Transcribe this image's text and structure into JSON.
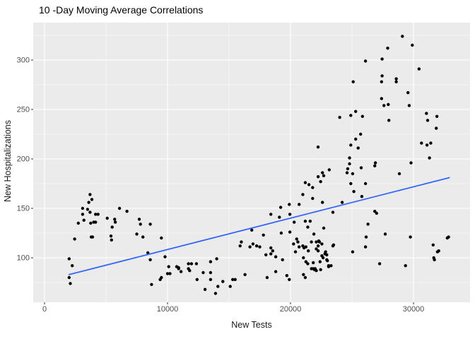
{
  "chart_data": {
    "type": "scatter",
    "title": "10 -Day Moving Average Correlations",
    "xlabel": "New Tests",
    "ylabel": "New Hospitalizations",
    "x_ticks": [
      0,
      10000,
      20000,
      30000
    ],
    "x_tick_labels": [
      "0",
      "10000",
      "20000",
      "30000"
    ],
    "y_ticks": [
      100,
      150,
      200,
      250,
      300
    ],
    "y_tick_labels": [
      "100",
      "150",
      "200",
      "250",
      "300"
    ],
    "xlim": [
      -920,
      34600
    ],
    "ylim": [
      55,
      338
    ],
    "grid": {
      "major": true,
      "minor": true,
      "style": "white gridlines on gray panel",
      "legend_position": "none"
    },
    "colors": {
      "panel_background": "#EBEBEB",
      "grid_major": "#FFFFFF",
      "grid_minor": "#FFFFFF",
      "point": "#000000",
      "trend_line": "#3366FF",
      "tick_mark": "#333333",
      "tick_text": "#4D4D4D",
      "title_text": "#000000",
      "outer_background": "#FFFFFF"
    },
    "trend_line": {
      "type": "linear-fit",
      "x": [
        2000,
        32900
      ],
      "y": [
        83,
        181
      ]
    },
    "points": [
      [
        2000,
        99
      ],
      [
        2250,
        92
      ],
      [
        2000,
        80
      ],
      [
        2100,
        74
      ],
      [
        2450,
        119
      ],
      [
        2750,
        135
      ],
      [
        3100,
        150
      ],
      [
        3100,
        144
      ],
      [
        3200,
        138
      ],
      [
        3500,
        149
      ],
      [
        3600,
        156
      ],
      [
        3700,
        164
      ],
      [
        3700,
        146
      ],
      [
        3850,
        159
      ],
      [
        3750,
        135
      ],
      [
        3800,
        121
      ],
      [
        3900,
        121
      ],
      [
        4000,
        136
      ],
      [
        4150,
        144
      ],
      [
        4150,
        136
      ],
      [
        4350,
        144
      ],
      [
        5100,
        140
      ],
      [
        5400,
        122
      ],
      [
        5450,
        118
      ],
      [
        5500,
        131
      ],
      [
        5700,
        139
      ],
      [
        5750,
        136
      ],
      [
        6100,
        150
      ],
      [
        6700,
        147
      ],
      [
        7500,
        124
      ],
      [
        7700,
        139
      ],
      [
        7800,
        134
      ],
      [
        8000,
        121
      ],
      [
        8400,
        105
      ],
      [
        8600,
        134
      ],
      [
        8600,
        98
      ],
      [
        8700,
        73
      ],
      [
        9400,
        78
      ],
      [
        9500,
        120
      ],
      [
        9500,
        80
      ],
      [
        9800,
        101
      ],
      [
        10000,
        84
      ],
      [
        10100,
        91
      ],
      [
        10200,
        84
      ],
      [
        10750,
        91
      ],
      [
        10900,
        89
      ],
      [
        10900,
        90
      ],
      [
        11100,
        86
      ],
      [
        11700,
        94
      ],
      [
        11700,
        89
      ],
      [
        11800,
        87
      ],
      [
        11950,
        94
      ],
      [
        12350,
        94
      ],
      [
        12400,
        78
      ],
      [
        12900,
        85
      ],
      [
        13050,
        68
      ],
      [
        13500,
        96
      ],
      [
        13500,
        85
      ],
      [
        13500,
        78
      ],
      [
        13900,
        64
      ],
      [
        14000,
        99
      ],
      [
        14100,
        71
      ],
      [
        14500,
        76
      ],
      [
        15100,
        71
      ],
      [
        15300,
        78
      ],
      [
        15500,
        78
      ],
      [
        15900,
        112
      ],
      [
        16000,
        116
      ],
      [
        16300,
        83
      ],
      [
        16700,
        111
      ],
      [
        16850,
        128
      ],
      [
        16950,
        114
      ],
      [
        17250,
        112
      ],
      [
        17500,
        111
      ],
      [
        17800,
        123
      ],
      [
        18000,
        103
      ],
      [
        18100,
        80
      ],
      [
        18400,
        144
      ],
      [
        18400,
        110
      ],
      [
        18400,
        104
      ],
      [
        18550,
        107
      ],
      [
        18800,
        101
      ],
      [
        18800,
        86
      ],
      [
        19100,
        141
      ],
      [
        19200,
        151
      ],
      [
        19250,
        125
      ],
      [
        19350,
        98
      ],
      [
        19700,
        82
      ],
      [
        19900,
        78
      ],
      [
        19900,
        154
      ],
      [
        19950,
        144
      ],
      [
        19950,
        126
      ],
      [
        20250,
        114
      ],
      [
        20300,
        136
      ],
      [
        20400,
        106
      ],
      [
        20500,
        119
      ],
      [
        20600,
        116
      ],
      [
        20700,
        154
      ],
      [
        20700,
        111
      ],
      [
        21000,
        164
      ],
      [
        21000,
        112
      ],
      [
        21050,
        100
      ],
      [
        21050,
        83
      ],
      [
        21100,
        110
      ],
      [
        21200,
        176
      ],
      [
        21200,
        137
      ],
      [
        21200,
        80
      ],
      [
        21250,
        111
      ],
      [
        21250,
        96
      ],
      [
        21400,
        131
      ],
      [
        21400,
        94
      ],
      [
        21450,
        107
      ],
      [
        21500,
        174
      ],
      [
        21600,
        137
      ],
      [
        21700,
        116
      ],
      [
        21700,
        89
      ],
      [
        21800,
        171
      ],
      [
        21800,
        160
      ],
      [
        21850,
        95
      ],
      [
        21850,
        89
      ],
      [
        21900,
        124
      ],
      [
        21950,
        88
      ],
      [
        22000,
        89
      ],
      [
        22100,
        116
      ],
      [
        22100,
        109
      ],
      [
        22100,
        87
      ],
      [
        22240,
        212
      ],
      [
        22250,
        182
      ],
      [
        22250,
        112
      ],
      [
        22250,
        107
      ],
      [
        22300,
        117
      ],
      [
        22350,
        116
      ],
      [
        22400,
        96
      ],
      [
        22450,
        177
      ],
      [
        22450,
        88
      ],
      [
        22550,
        114
      ],
      [
        22550,
        102
      ],
      [
        22600,
        186
      ],
      [
        22600,
        156
      ],
      [
        22650,
        100
      ],
      [
        22700,
        183
      ],
      [
        22700,
        130
      ],
      [
        22800,
        104
      ],
      [
        22850,
        106
      ],
      [
        22950,
        103
      ],
      [
        22950,
        98
      ],
      [
        23000,
        97
      ],
      [
        23100,
        92
      ],
      [
        23100,
        91
      ],
      [
        23150,
        189
      ],
      [
        23300,
        92
      ],
      [
        23450,
        146
      ],
      [
        23450,
        112
      ],
      [
        23500,
        113
      ],
      [
        24000,
        242
      ],
      [
        24200,
        156
      ],
      [
        24600,
        186
      ],
      [
        24650,
        190
      ],
      [
        24800,
        201
      ],
      [
        24800,
        195
      ],
      [
        24900,
        244
      ],
      [
        24900,
        214
      ],
      [
        24900,
        175
      ],
      [
        25050,
        185
      ],
      [
        25050,
        106
      ],
      [
        25100,
        278
      ],
      [
        25150,
        167
      ],
      [
        25300,
        248
      ],
      [
        25300,
        220
      ],
      [
        25500,
        211
      ],
      [
        25700,
        225
      ],
      [
        25750,
        191
      ],
      [
        25800,
        162
      ],
      [
        25850,
        243
      ],
      [
        26100,
        299
      ],
      [
        26100,
        175
      ],
      [
        26100,
        111
      ],
      [
        26150,
        121
      ],
      [
        26300,
        134
      ],
      [
        26850,
        193
      ],
      [
        26850,
        147
      ],
      [
        26900,
        196
      ],
      [
        27000,
        145
      ],
      [
        27250,
        94
      ],
      [
        27400,
        278
      ],
      [
        27400,
        261
      ],
      [
        27450,
        301
      ],
      [
        27450,
        284
      ],
      [
        27600,
        254
      ],
      [
        27700,
        124
      ],
      [
        27900,
        312
      ],
      [
        27950,
        255
      ],
      [
        28000,
        239
      ],
      [
        28600,
        281
      ],
      [
        28600,
        278
      ],
      [
        28850,
        185
      ],
      [
        29100,
        324
      ],
      [
        29350,
        92
      ],
      [
        29550,
        267
      ],
      [
        29650,
        254
      ],
      [
        29750,
        121
      ],
      [
        29800,
        196
      ],
      [
        29900,
        315
      ],
      [
        30450,
        291
      ],
      [
        30650,
        216
      ],
      [
        31050,
        246
      ],
      [
        31100,
        214
      ],
      [
        31150,
        239
      ],
      [
        31300,
        201
      ],
      [
        31400,
        216
      ],
      [
        31600,
        113
      ],
      [
        31650,
        100
      ],
      [
        31700,
        98
      ],
      [
        31850,
        231
      ],
      [
        31900,
        243
      ],
      [
        31950,
        106
      ],
      [
        32050,
        107
      ],
      [
        32750,
        120
      ],
      [
        32850,
        121
      ]
    ]
  }
}
